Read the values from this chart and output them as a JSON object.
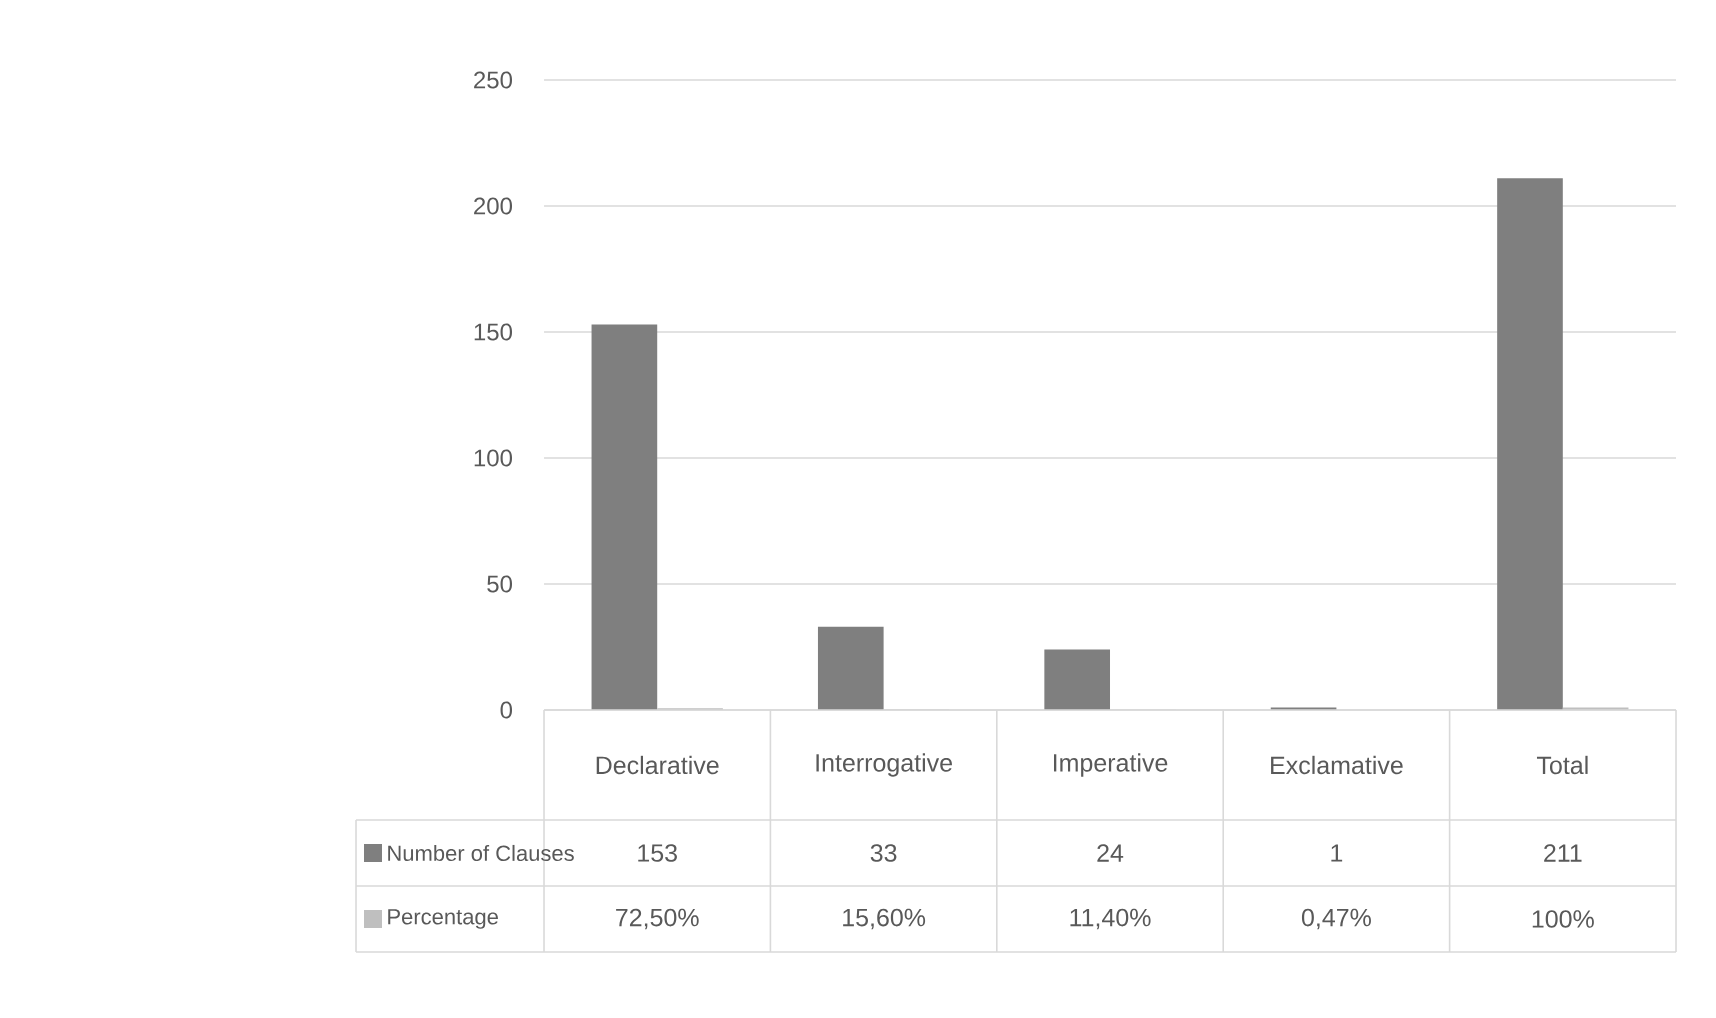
{
  "chart_data": {
    "type": "bar",
    "categories": [
      "Declarative",
      "Interrogative",
      "Imperative",
      "Exclamative",
      "Total"
    ],
    "series": [
      {
        "name": "Number of Clauses",
        "color": "#7f7f7f",
        "values": [
          153,
          33,
          24,
          1,
          211
        ],
        "value_labels": [
          "153",
          "33",
          "24",
          "1",
          "211"
        ]
      },
      {
        "name": "Percentage",
        "color": "#bfbfbf",
        "values": [
          0.725,
          0.156,
          0.114,
          0.0047,
          1
        ],
        "value_labels": [
          "72,50%",
          "15,60%",
          "11,40%",
          "0,47%",
          "100%"
        ]
      }
    ],
    "ylim": [
      0,
      250
    ],
    "yticks": [
      0,
      50,
      100,
      150,
      200,
      250
    ],
    "grid": "y",
    "legend": "bottom"
  }
}
